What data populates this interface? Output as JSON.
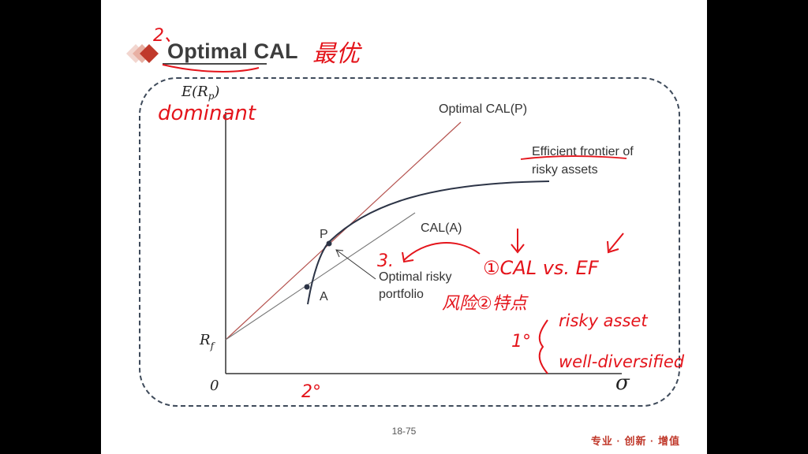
{
  "slide": {
    "title": "Optimal CAL",
    "page_number": "18-75",
    "brand_slogan": "专业 · 创新 · 增值"
  },
  "diagram": {
    "y_axis_label": "E(R",
    "y_axis_sub": "p",
    "y_axis_close": ")",
    "x_axis_label": "σ",
    "origin_label": "0",
    "rf_label": "R",
    "rf_sub": "f",
    "optimal_cal_label": "Optimal CAL(P)",
    "cal_a_label": "CAL(A)",
    "frontier_label_line1": "Efficient frontier of",
    "frontier_label_line2": "risky assets",
    "point_p_label": "P",
    "point_a_label": "A",
    "optimal_portfolio_line1": "Optimal risky",
    "optimal_portfolio_line2": "portfolio"
  },
  "annotations": {
    "title_number": "2、",
    "title_note": "最优",
    "dominant": "dominant",
    "note_3": "3.",
    "cal_vs_ef": "①CAL vs. EF",
    "risk_features": "风险②特点",
    "item_1": "1°",
    "risky_asset": "risky asset",
    "well_diversified": "well-diversified",
    "item_2": "2°"
  },
  "colors": {
    "handwriting": "#e4141b",
    "optimal_cal_line": "#b5534f",
    "cal_a_line": "#777777",
    "frontier": "#2c3446",
    "frame": "#3e4a5a",
    "brand": "#c0392b"
  }
}
